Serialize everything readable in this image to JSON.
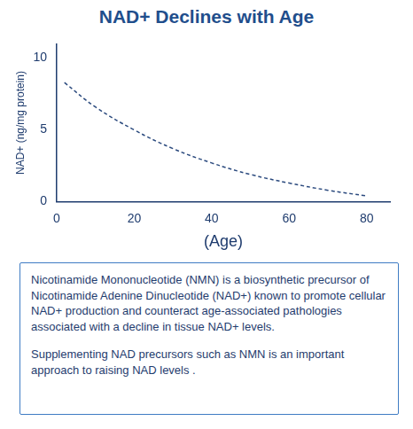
{
  "chart_data": {
    "type": "line",
    "title": "NAD+ Declines with Age",
    "x_label": "(Age)",
    "y_label": "NAD+ (ng/mg protein)",
    "x": [
      2,
      10,
      20,
      30,
      40,
      50,
      60,
      70,
      80
    ],
    "series": [
      {
        "name": "NAD+",
        "color": "#2b4a7e",
        "line_style": "dashed",
        "marker": "none",
        "values": [
          8.3,
          6.6,
          5.0,
          3.7,
          2.7,
          1.9,
          1.3,
          0.8,
          0.4
        ]
      }
    ],
    "xlim": [
      0,
      86
    ],
    "xticks": [
      0,
      20,
      40,
      60,
      80
    ],
    "ylim": [
      0,
      11
    ],
    "yticks": [
      0,
      5,
      10
    ],
    "grid": false
  },
  "text_box": {
    "paragraphs": [
      "Nicotinamide Mononucleotide (NMN) is a biosynthetic precursor of Nicotinamide Adenine Dinucleotide (NAD+) known to promote cellular NAD+ production and counteract age-associated pathologies associated with a decline in tissue NAD+ levels.",
      "Supplementing NAD precursors such as NMN is an important approach to raising NAD levels ."
    ]
  }
}
